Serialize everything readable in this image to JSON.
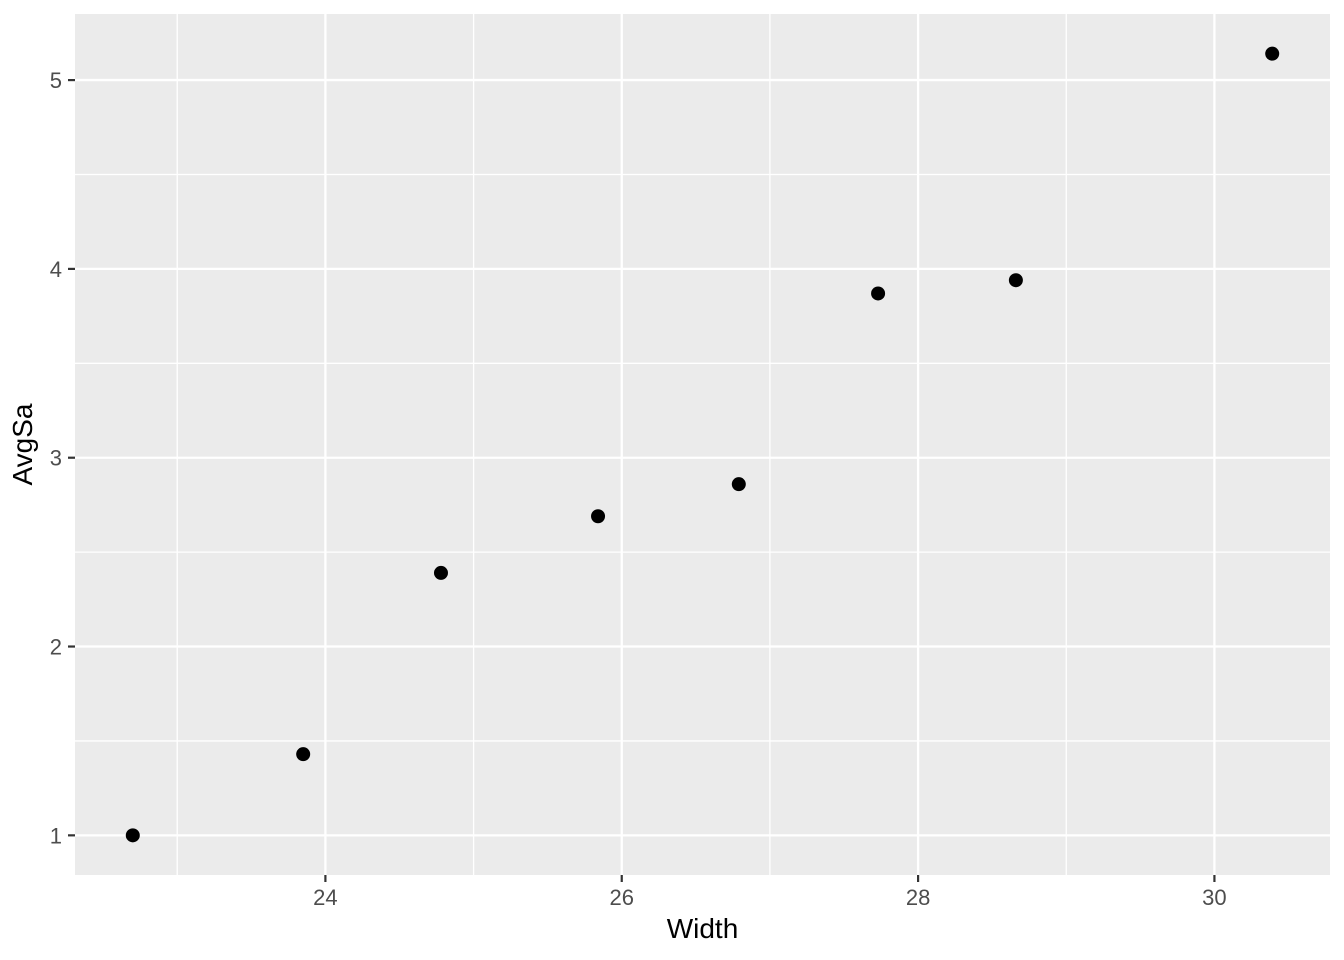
{
  "chart_data": {
    "type": "scatter",
    "title": "",
    "xlabel": "Width",
    "ylabel": "AvgSa",
    "points": [
      {
        "x": 22.7,
        "y": 1.0
      },
      {
        "x": 23.85,
        "y": 1.43
      },
      {
        "x": 24.78,
        "y": 2.39
      },
      {
        "x": 25.84,
        "y": 2.69
      },
      {
        "x": 26.79,
        "y": 2.86
      },
      {
        "x": 27.73,
        "y": 3.87
      },
      {
        "x": 28.66,
        "y": 3.94
      },
      {
        "x": 30.39,
        "y": 5.14
      }
    ],
    "x_ticks": [
      24,
      26,
      28,
      30
    ],
    "y_ticks": [
      1,
      2,
      3,
      4,
      5
    ],
    "x_minor_gridlines": [
      23,
      25,
      27,
      29
    ],
    "y_minor_gridlines": [
      1.5,
      2.5,
      3.5,
      4.5
    ],
    "xlim": [
      22.31,
      30.78
    ],
    "ylim": [
      0.79,
      5.35
    ],
    "grid": "on",
    "legend": "none",
    "style": {
      "panel_bg": "#EBEBEB",
      "grid_color": "#FFFFFF",
      "point_color": "#000000",
      "point_radius": 7,
      "tick_label_color": "#4D4D4D",
      "axis_title_color": "#000000",
      "tick_mark_color": "#333333"
    }
  }
}
